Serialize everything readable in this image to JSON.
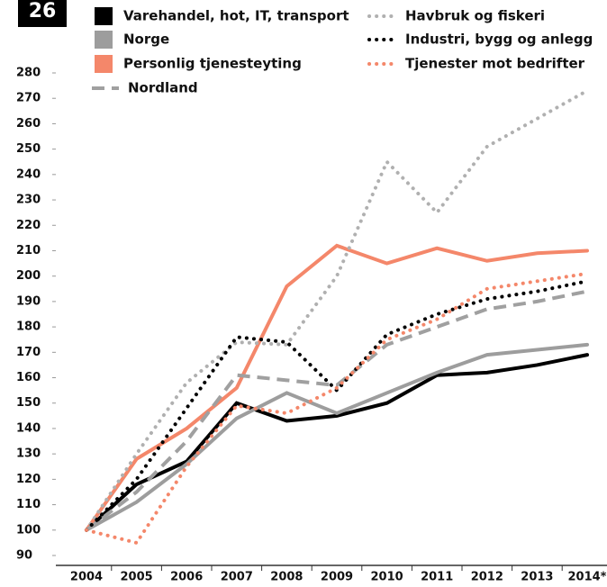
{
  "chart_data": {
    "type": "line",
    "badge": "26",
    "categories": [
      "2004",
      "2005",
      "2006",
      "2007",
      "2008",
      "2009",
      "2010",
      "2011",
      "2012",
      "2013",
      "2014*"
    ],
    "ylim": [
      90,
      280
    ],
    "yticks": [
      90,
      100,
      110,
      120,
      130,
      140,
      150,
      160,
      170,
      180,
      190,
      200,
      210,
      220,
      230,
      240,
      250,
      260,
      270,
      280
    ],
    "grid": false,
    "series": [
      {
        "name": "Varehandel, hot, IT, transport",
        "color": "#000000",
        "style": "solid",
        "values": [
          100,
          118,
          127,
          150,
          143,
          145,
          150,
          161,
          162,
          165,
          169
        ]
      },
      {
        "name": "Norge",
        "color": "#9d9d9d",
        "style": "solid",
        "values": [
          100,
          111,
          126,
          144,
          154,
          146,
          154,
          162,
          169,
          171,
          173
        ]
      },
      {
        "name": "Personlig tjenesteyting",
        "color": "#f4876a",
        "style": "solid",
        "values": [
          100,
          128,
          140,
          156,
          196,
          212,
          205,
          211,
          206,
          209,
          210
        ]
      },
      {
        "name": "Nordland",
        "color": "#a0a0a0",
        "style": "dashed",
        "values": [
          100,
          115,
          135,
          161,
          159,
          157,
          173,
          180,
          187,
          190,
          194
        ]
      },
      {
        "name": "Havbruk og fiskeri",
        "color": "#b0b0b0",
        "style": "dotted",
        "values": [
          100,
          130,
          158,
          174,
          173,
          200,
          245,
          225,
          251,
          262,
          273
        ]
      },
      {
        "name": "Industri, bygg og anlegg",
        "color": "#000000",
        "style": "dotted",
        "values": [
          100,
          120,
          148,
          176,
          174,
          155,
          177,
          185,
          191,
          194,
          198
        ]
      },
      {
        "name": "Tjenester mot bedrifter",
        "color": "#f4876a",
        "style": "dotted",
        "values": [
          100,
          95,
          125,
          149,
          146,
          156,
          175,
          183,
          195,
          198,
          201
        ]
      }
    ]
  }
}
